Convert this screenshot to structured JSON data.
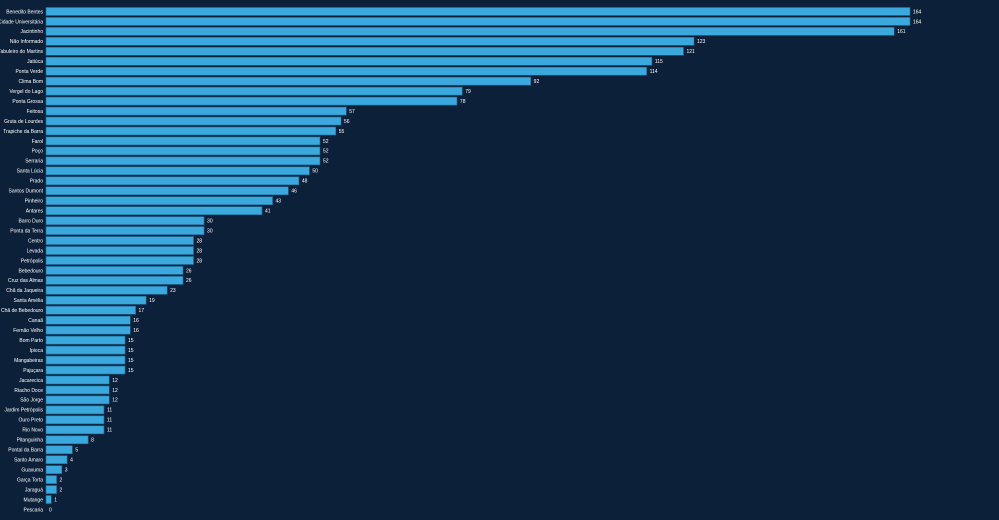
{
  "chart_data": {
    "type": "hbar",
    "color": "#3ba9dd",
    "categories": [
      "Benedito Bentes",
      "Cidade Universitária",
      "Jacintinho",
      "Não Informado",
      "Tabuleiro do Martins",
      "Jatiúca",
      "Ponta Verde",
      "Clima Bom",
      "Vergel do Lago",
      "Ponta Grossa",
      "Feitosa",
      "Gruta de Lourdes",
      "Trapiche da Barra",
      "Farol",
      "Poço",
      "Serraria",
      "Santa Lúcia",
      "Prado",
      "Santos Dumont",
      "Pinheiro",
      "Antares",
      "Barro Duro",
      "Ponta da Terra",
      "Centro",
      "Levada",
      "Petrópolis",
      "Bebedouro",
      "Cruz das Almas",
      "Chã da Jaqueira",
      "Santa Amélia",
      "Chã de Bebedouro",
      "Canaã",
      "Fernão Velho",
      "Bom Parto",
      "Ipioca",
      "Mangabeiras",
      "Pajuçara",
      "Jacarecica",
      "Riacho Doce",
      "São Jorge",
      "Jardim Petrópolis",
      "Ouro Preto",
      "Rio Novo",
      "Pitanguinha",
      "Pontal da Barra",
      "Santo Amaro",
      "Guaxuma",
      "Garça Torta",
      "Jaraguá",
      "Mutange",
      "Pescaria"
    ],
    "values": [
      164,
      164,
      161,
      123,
      121,
      115,
      114,
      92,
      79,
      78,
      57,
      56,
      55,
      52,
      52,
      52,
      50,
      48,
      46,
      43,
      41,
      30,
      30,
      28,
      28,
      28,
      26,
      26,
      23,
      19,
      17,
      16,
      16,
      15,
      15,
      15,
      15,
      12,
      12,
      12,
      11,
      11,
      11,
      8,
      5,
      4,
      3,
      2,
      2,
      1,
      0
    ]
  }
}
